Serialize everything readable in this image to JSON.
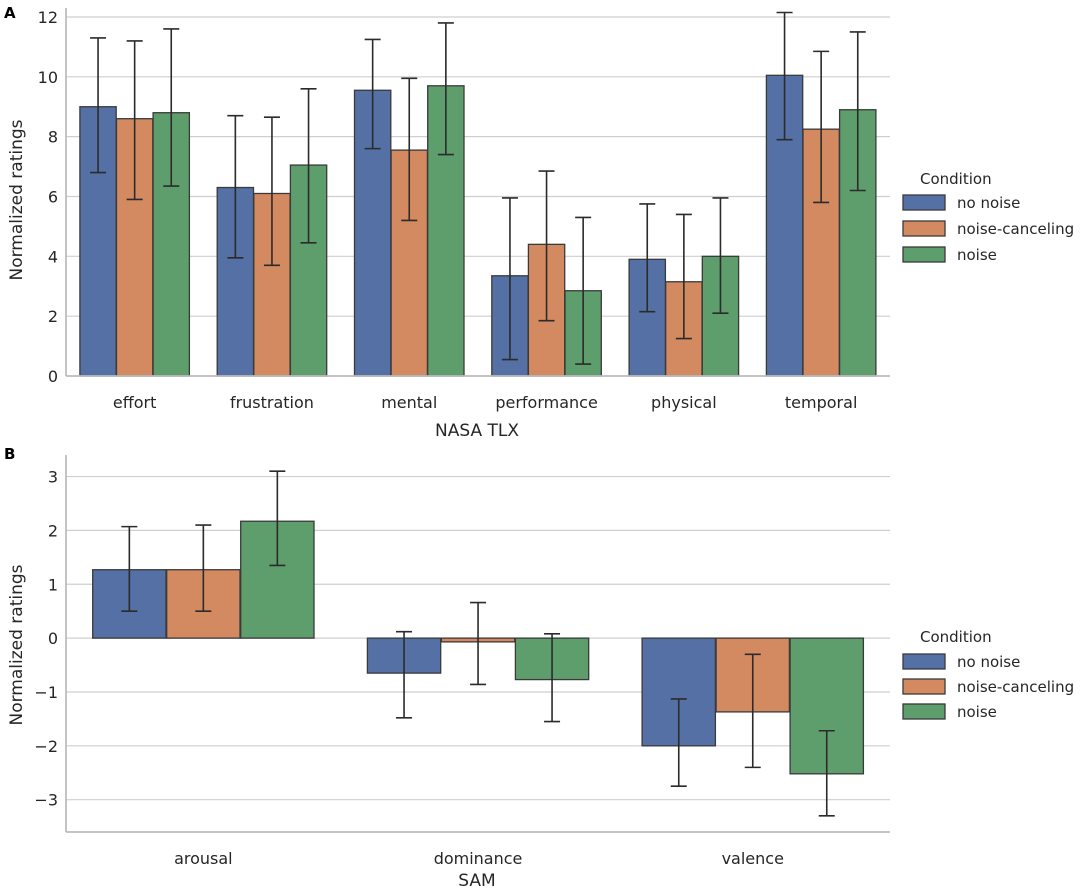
{
  "colors": {
    "no noise": "#5470a5",
    "noise-canceling": "#d48a60",
    "noise": "#5e9e6c"
  },
  "chart_data": [
    {
      "type": "bar",
      "panel": "A",
      "categories": [
        "effort",
        "frustration",
        "mental",
        "performance",
        "physical",
        "temporal"
      ],
      "xlabel": "NASA TLX",
      "ylabel": "Normalized ratings",
      "ylim": [
        0,
        12.3
      ],
      "yticks": [
        0,
        2,
        4,
        6,
        8,
        10,
        12
      ],
      "ytick_labels": [
        "0",
        "2",
        "4",
        "6",
        "8",
        "10",
        "12"
      ],
      "grid": true,
      "legend_title": "Condition",
      "legend_position": "right",
      "series": [
        {
          "name": "no noise",
          "values": [
            9.0,
            6.3,
            9.55,
            3.35,
            3.9,
            10.05
          ],
          "err_low": [
            6.8,
            3.95,
            7.6,
            0.55,
            2.15,
            7.9
          ],
          "err_high": [
            11.3,
            8.7,
            11.25,
            5.95,
            5.75,
            12.15
          ]
        },
        {
          "name": "noise-canceling",
          "values": [
            8.6,
            6.1,
            7.55,
            4.4,
            3.15,
            8.25
          ],
          "err_low": [
            5.9,
            3.7,
            5.2,
            1.85,
            1.25,
            5.8
          ],
          "err_high": [
            11.2,
            8.65,
            9.95,
            6.85,
            5.4,
            10.85
          ]
        },
        {
          "name": "noise",
          "values": [
            8.8,
            7.05,
            9.7,
            2.85,
            4.0,
            8.9
          ],
          "err_low": [
            6.35,
            4.45,
            7.4,
            0.4,
            2.1,
            6.2
          ],
          "err_high": [
            11.6,
            9.6,
            11.8,
            5.3,
            5.95,
            11.5
          ]
        }
      ]
    },
    {
      "type": "bar",
      "panel": "B",
      "categories": [
        "arousal",
        "dominance",
        "valence"
      ],
      "xlabel": "SAM",
      "ylabel": "Normalized ratings",
      "ylim": [
        -3.6,
        3.4
      ],
      "yticks": [
        -3,
        -2,
        -1,
        0,
        1,
        2,
        3
      ],
      "ytick_labels": [
        "−3",
        "−2",
        "−1",
        "0",
        "1",
        "2",
        "3"
      ],
      "grid": true,
      "legend_title": "Condition",
      "legend_position": "right",
      "series": [
        {
          "name": "no noise",
          "values": [
            1.27,
            -0.65,
            -2.0
          ],
          "err_low": [
            0.5,
            -1.48,
            -2.75
          ],
          "err_high": [
            2.07,
            0.12,
            -1.13
          ]
        },
        {
          "name": "noise-canceling",
          "values": [
            1.27,
            -0.07,
            -1.37
          ],
          "err_low": [
            0.5,
            -0.86,
            -2.4
          ],
          "err_high": [
            2.1,
            0.66,
            -0.3
          ]
        },
        {
          "name": "noise",
          "values": [
            2.17,
            -0.77,
            -2.52
          ],
          "err_low": [
            1.35,
            -1.55,
            -3.3
          ],
          "err_high": [
            3.1,
            0.08,
            -1.72
          ]
        }
      ]
    }
  ]
}
